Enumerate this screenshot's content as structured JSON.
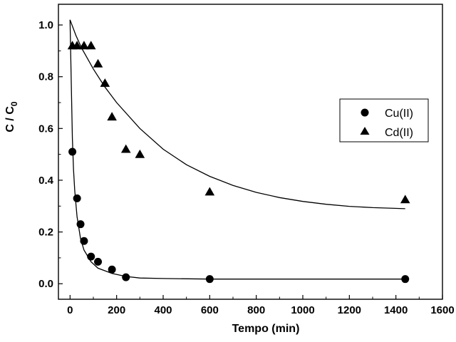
{
  "chart_data": {
    "type": "scatter",
    "xlabel": "Tempo (min)",
    "ylabel": {
      "main": "C / C",
      "sub": "0"
    },
    "xlim": [
      -50,
      1600
    ],
    "ylim": [
      -0.06,
      1.08
    ],
    "xticks": [
      0,
      200,
      400,
      600,
      800,
      1000,
      1200,
      1400,
      1600
    ],
    "yticks": [
      0.0,
      0.2,
      0.4,
      0.6,
      0.8,
      1.0
    ],
    "ytick_labels": [
      "0.0",
      "0.2",
      "0.4",
      "0.6",
      "0.8",
      "1.0"
    ],
    "grid": false,
    "legend_position": "right-middle",
    "series": [
      {
        "name": "Cu(II)",
        "marker": "circle",
        "color": "#000000",
        "points": [
          [
            10,
            0.51
          ],
          [
            30,
            0.33
          ],
          [
            45,
            0.23
          ],
          [
            60,
            0.165
          ],
          [
            90,
            0.105
          ],
          [
            120,
            0.085
          ],
          [
            180,
            0.055
          ],
          [
            240,
            0.025
          ],
          [
            600,
            0.018
          ],
          [
            1440,
            0.018
          ]
        ],
        "fit": [
          [
            0,
            1.02
          ],
          [
            5,
            0.78
          ],
          [
            10,
            0.56
          ],
          [
            15,
            0.44
          ],
          [
            20,
            0.36
          ],
          [
            30,
            0.26
          ],
          [
            45,
            0.175
          ],
          [
            60,
            0.13
          ],
          [
            90,
            0.085
          ],
          [
            120,
            0.06
          ],
          [
            180,
            0.04
          ],
          [
            240,
            0.028
          ],
          [
            300,
            0.022
          ],
          [
            400,
            0.02
          ],
          [
            600,
            0.018
          ],
          [
            1000,
            0.018
          ],
          [
            1440,
            0.018
          ]
        ]
      },
      {
        "name": "Cd(II)",
        "marker": "triangle",
        "color": "#000000",
        "points": [
          [
            10,
            0.92
          ],
          [
            30,
            0.92
          ],
          [
            60,
            0.92
          ],
          [
            90,
            0.92
          ],
          [
            120,
            0.85
          ],
          [
            150,
            0.775
          ],
          [
            180,
            0.645
          ],
          [
            240,
            0.52
          ],
          [
            300,
            0.5
          ],
          [
            600,
            0.355
          ],
          [
            1440,
            0.325
          ]
        ],
        "fit": [
          [
            0,
            1.02
          ],
          [
            25,
            0.96
          ],
          [
            50,
            0.91
          ],
          [
            100,
            0.83
          ],
          [
            150,
            0.76
          ],
          [
            200,
            0.7
          ],
          [
            300,
            0.6
          ],
          [
            400,
            0.52
          ],
          [
            500,
            0.46
          ],
          [
            600,
            0.415
          ],
          [
            700,
            0.38
          ],
          [
            800,
            0.353
          ],
          [
            900,
            0.333
          ],
          [
            1000,
            0.318
          ],
          [
            1100,
            0.307
          ],
          [
            1200,
            0.299
          ],
          [
            1300,
            0.294
          ],
          [
            1440,
            0.29
          ]
        ]
      }
    ]
  }
}
